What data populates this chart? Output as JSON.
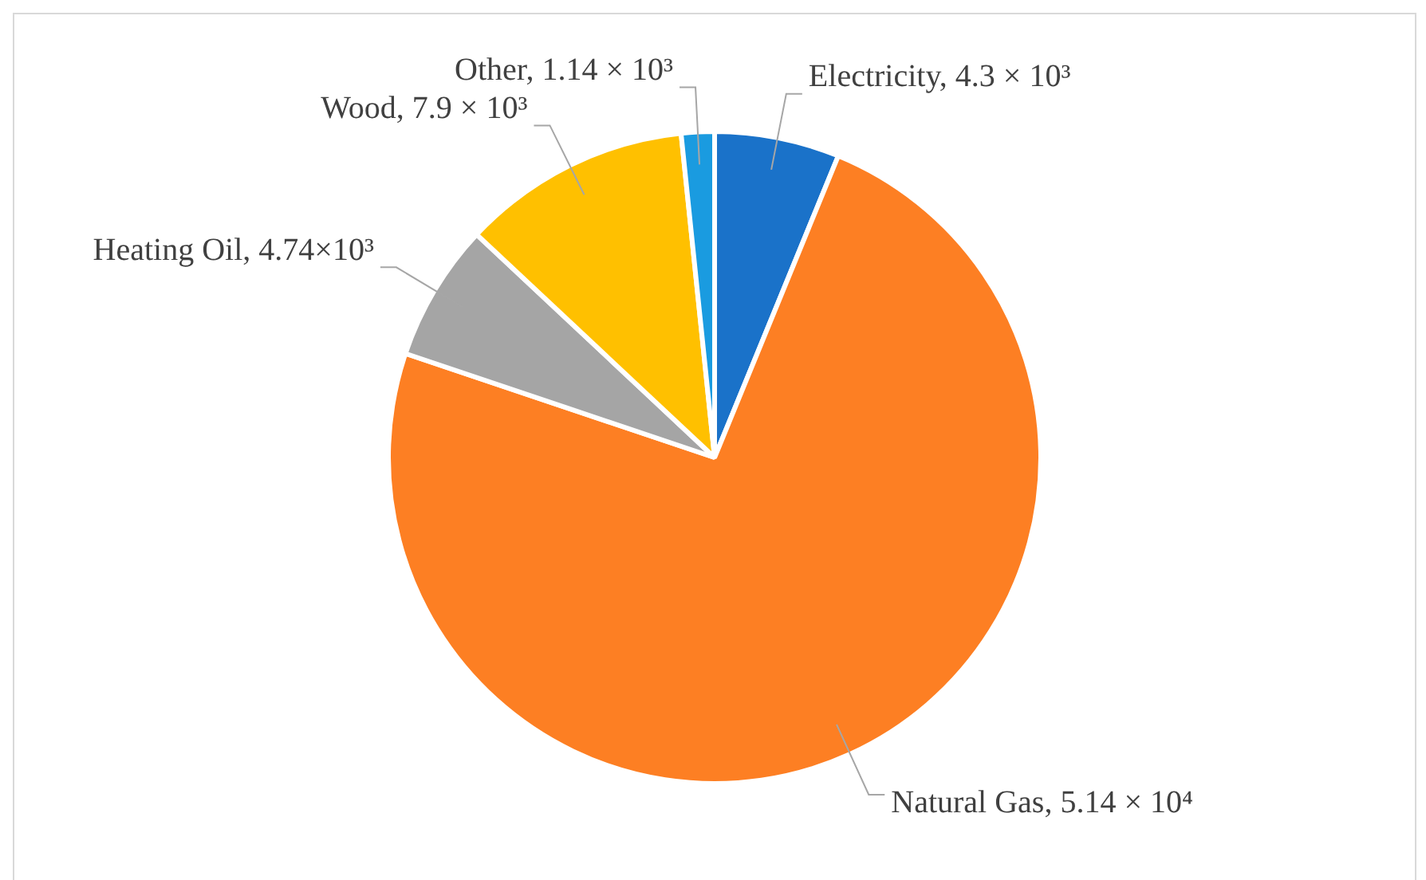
{
  "chart_data": {
    "type": "pie",
    "categories": [
      "Electricity",
      "Natural Gas",
      "Heating Oil",
      "Wood",
      "Other"
    ],
    "values": [
      4300,
      51400,
      4740,
      7900,
      1140
    ],
    "value_labels": [
      "4.3 × 10³",
      "5.14 × 10⁴",
      "4.74×10³",
      "7.9 × 10³",
      "1.14 × 10³"
    ],
    "colors": [
      "#1a72c9",
      "#fd7f23",
      "#a5a5a5",
      "#ffc000",
      "#1a9be0"
    ],
    "legend": false
  }
}
